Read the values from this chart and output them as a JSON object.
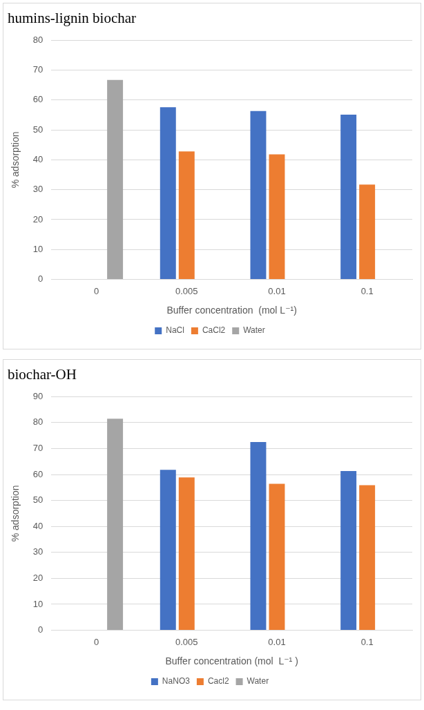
{
  "chart_data": [
    {
      "type": "bar",
      "title": "humins-lignin biochar",
      "xlabel": "Buffer concentration  (mol L⁻¹)",
      "ylabel": "% adsorption",
      "categories": [
        "0",
        "0.005",
        "0.01",
        "0.1"
      ],
      "series": [
        {
          "name": "NaCl",
          "color": "#4472c4",
          "values": [
            null,
            57.6,
            56.3,
            55.1
          ]
        },
        {
          "name": "CaCl2",
          "color": "#ed7d31",
          "values": [
            null,
            42.8,
            41.8,
            31.7
          ]
        },
        {
          "name": "Water",
          "color": "#a5a5a5",
          "values": [
            66.7,
            null,
            null,
            null
          ]
        }
      ],
      "ylim": [
        0,
        80
      ],
      "yticks": [
        0,
        10,
        20,
        30,
        40,
        50,
        60,
        70,
        80
      ],
      "grid": "y",
      "legend": "bottom"
    },
    {
      "type": "bar",
      "title": "biochar-OH",
      "xlabel": "Buffer concentration (mol  L⁻¹ )",
      "ylabel": "% adsorption",
      "categories": [
        "0",
        "0.005",
        "0.01",
        "0.1"
      ],
      "series": [
        {
          "name": "NaNO3",
          "color": "#4472c4",
          "values": [
            null,
            61.8,
            72.5,
            61.3
          ]
        },
        {
          "name": "Cacl2",
          "color": "#ed7d31",
          "values": [
            null,
            58.9,
            56.4,
            55.9
          ]
        },
        {
          "name": "Water",
          "color": "#a5a5a5",
          "values": [
            81.5,
            null,
            null,
            null
          ]
        }
      ],
      "ylim": [
        0,
        90
      ],
      "yticks": [
        0,
        10,
        20,
        30,
        40,
        50,
        60,
        70,
        80,
        90
      ],
      "grid": "y",
      "legend": "bottom"
    }
  ]
}
